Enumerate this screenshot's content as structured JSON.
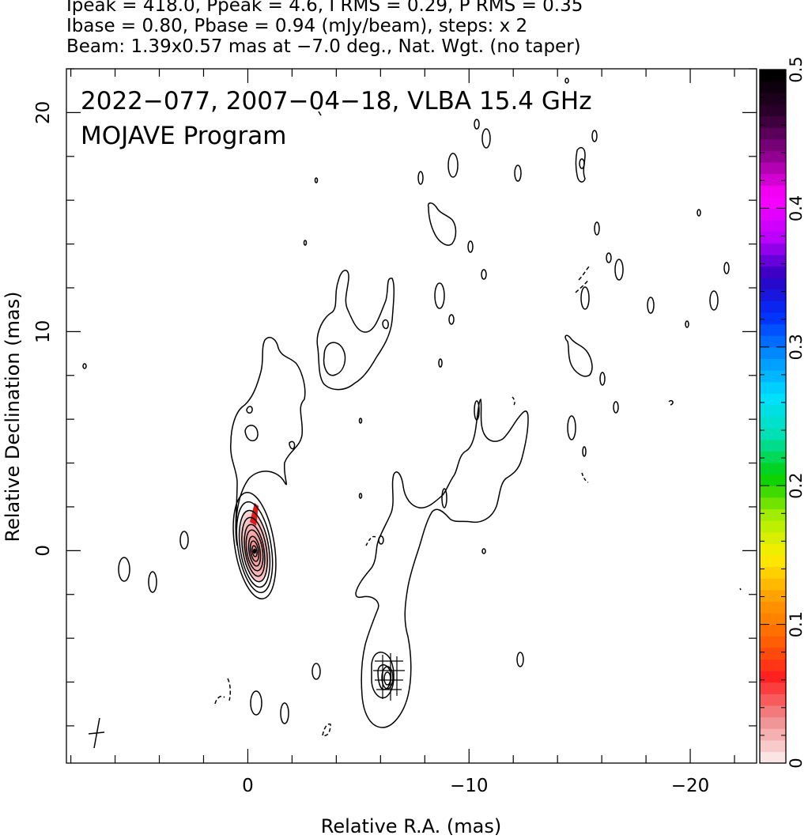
{
  "header": {
    "line1": "Ipeak = 418.0, Ppeak = 4.6, I RMS = 0.29, P RMS = 0.35",
    "line2": "Ibase = 0.80, Pbase = 0.94 (mJy/beam), steps: x 2",
    "line3": "Beam: 1.39x0.57 mas at −7.0 deg., Nat. Wgt. (no taper)"
  },
  "plot_title": {
    "line1": "2022−077, 2007−04−18, VLBA 15.4 GHz",
    "line2": "MOJAVE Program"
  },
  "chart_data": {
    "type": "contour",
    "title": "2022−077, 2007−04−18, VLBA 15.4 GHz",
    "subtitle": "MOJAVE Program",
    "xlabel": "Relative R.A. (mas)",
    "ylabel": "Relative Declination (mas)",
    "xlim": [
      8.2,
      -23.0
    ],
    "ylim": [
      -9.7,
      22.0
    ],
    "x_ticks": [
      0,
      -10,
      -20
    ],
    "x_tick_labels": [
      "0",
      "−10",
      "−20"
    ],
    "y_ticks": [
      0,
      10,
      20
    ],
    "y_tick_labels": [
      "0",
      "10",
      "20"
    ],
    "grid": false,
    "colorbar": {
      "label_min": "0",
      "range": [
        0,
        0.5
      ],
      "ticks": [
        0,
        0.1,
        0.2,
        0.3,
        0.4,
        0.5
      ],
      "tick_labels": [
        "0",
        "0.1",
        "0.2",
        "0.3",
        "0.4",
        "0.5"
      ],
      "position": "right",
      "colors": [
        "#fbe4e4",
        "#f08a8a",
        "#ff2020",
        "#ff6600",
        "#ffa000",
        "#ffee00",
        "#aaee00",
        "#00d000",
        "#00e0b0",
        "#00e0ff",
        "#0090ff",
        "#0030ff",
        "#3000c0",
        "#c000ff",
        "#ff00ff",
        "#900090",
        "#300030",
        "#000000"
      ]
    },
    "core": {
      "x": 0.0,
      "y": 0.0,
      "peak_mJy_per_beam": 418.0
    },
    "beam": {
      "major_mas": 1.39,
      "minor_mas": 0.57,
      "pa_deg": -7.0,
      "x": 7.2,
      "y": -8.2
    },
    "jet_components": [
      {
        "x": -6.0,
        "y": -5.8
      },
      {
        "x": -4.0,
        "y": 8.8
      },
      {
        "x": -1.0,
        "y": 5.3
      }
    ],
    "polarization_color": "#e21a1a"
  },
  "colors": {
    "axis": "#000000",
    "contour": "#000000",
    "polarization": "#e21a1a",
    "background": "#ffffff"
  }
}
